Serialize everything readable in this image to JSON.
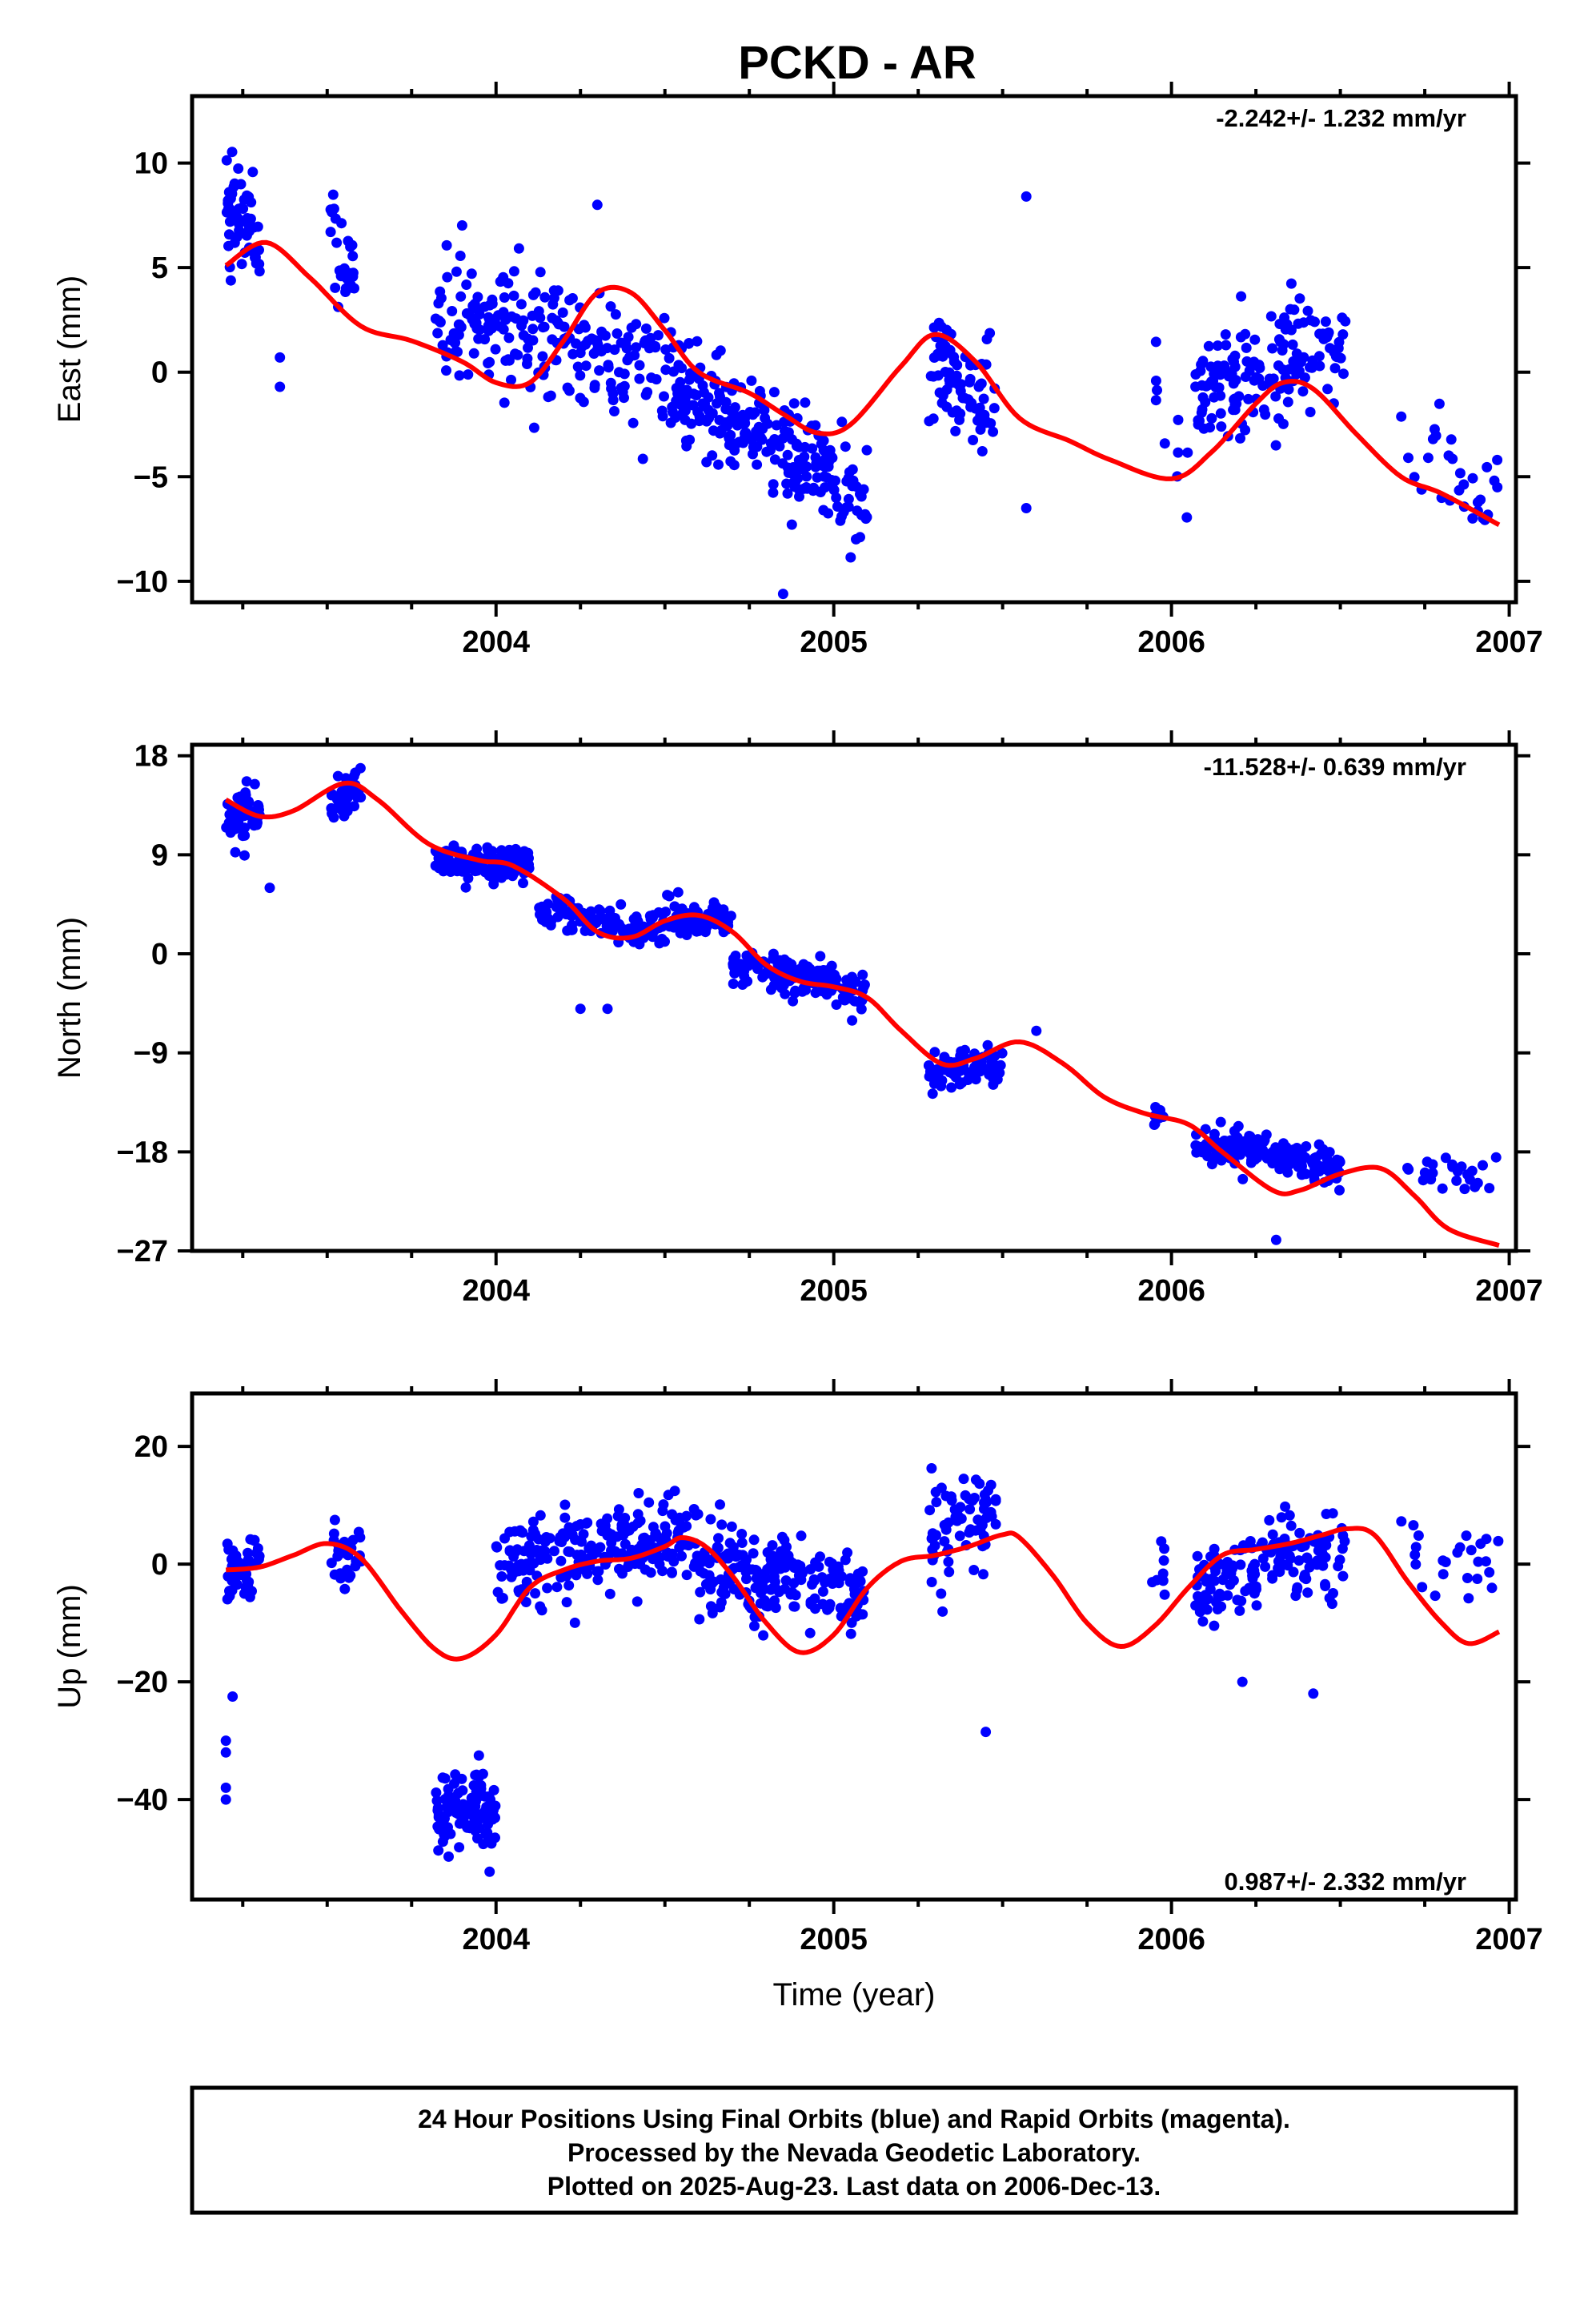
{
  "colors": {
    "points": "#0000ff",
    "model": "#ff0000",
    "frame": "#000000"
  },
  "chart_data": {
    "type": "scatter",
    "title": "PCKD - AR",
    "xlabel": "Time (year)",
    "xlim": [
      2003.1,
      2007.02
    ],
    "xticks": [
      2004,
      2005,
      2006,
      2007
    ],
    "grid": false,
    "panels": [
      {
        "id": "east",
        "ylabel": "East (mm)",
        "ylim": [
          -11,
          13.2
        ],
        "yticks": [
          -10,
          -5,
          0,
          5,
          10
        ],
        "rate_text": "-2.242+/- 1.232 mm/yr",
        "rate_position": "top-right",
        "model": [
          [
            2003.2,
            5.1
          ],
          [
            2003.32,
            6.2
          ],
          [
            2003.45,
            4.5
          ],
          [
            2003.6,
            2.2
          ],
          [
            2003.75,
            1.5
          ],
          [
            2003.9,
            0.5
          ],
          [
            2004.0,
            -0.5
          ],
          [
            2004.1,
            -0.5
          ],
          [
            2004.2,
            1.5
          ],
          [
            2004.3,
            3.8
          ],
          [
            2004.4,
            3.8
          ],
          [
            2004.5,
            2
          ],
          [
            2004.6,
            0
          ],
          [
            2004.75,
            -1
          ],
          [
            2004.85,
            -2
          ],
          [
            2004.95,
            -2.9
          ],
          [
            2005.05,
            -2.5
          ],
          [
            2005.2,
            0.3
          ],
          [
            2005.3,
            1.8
          ],
          [
            2005.42,
            0.5
          ],
          [
            2005.55,
            -2.2
          ],
          [
            2005.7,
            -3.3
          ],
          [
            2005.82,
            -4.2
          ],
          [
            2006.0,
            -5.1
          ],
          [
            2006.12,
            -3.8
          ],
          [
            2006.25,
            -1.5
          ],
          [
            2006.33,
            -0.5
          ],
          [
            2006.42,
            -0.8
          ],
          [
            2006.55,
            -3
          ],
          [
            2006.68,
            -5
          ],
          [
            2006.8,
            -5.8
          ],
          [
            2006.97,
            -7.3
          ]
        ],
        "clusters": [
          {
            "x": [
              2003.2,
              2003.3
            ],
            "center": [
              8,
              7
            ],
            "spread": 2.3,
            "n": 55
          },
          {
            "x": [
              2003.51,
              2003.58
            ],
            "center": [
              6.5,
              3.5
            ],
            "spread": 2.3,
            "n": 32
          },
          {
            "x": [
              2003.82,
              2004.55
            ],
            "center": [
              3,
              0
            ],
            "spread": 2.2,
            "n": 240
          },
          {
            "x": [
              2004.55,
              2005.1
            ],
            "center": [
              -1,
              -6
            ],
            "spread": 2.0,
            "n": 230
          },
          {
            "x": [
              2005.28,
              2005.48
            ],
            "center": [
              1,
              -2.5
            ],
            "spread": 2.5,
            "n": 80
          },
          {
            "x": [
              2005.94,
              2006.05
            ],
            "center": [
              0,
              -5
            ],
            "spread": 2.5,
            "n": 10
          },
          {
            "x": [
              2006.07,
              2006.52
            ],
            "center": [
              -1,
              1.5
            ],
            "spread": 2.2,
            "n": 160
          },
          {
            "x": [
              2006.68,
              2006.97
            ],
            "center": [
              -3,
              -6.5
            ],
            "spread": 1.8,
            "n": 30
          }
        ],
        "extra_points": [
          [
            2005.57,
            8.4
          ],
          [
            2004.85,
            -10.6
          ],
          [
            2003.36,
            -0.7
          ],
          [
            2003.36,
            0.7
          ],
          [
            2004.3,
            8
          ],
          [
            2005.57,
            -6.5
          ]
        ]
      },
      {
        "id": "north",
        "ylabel": "North (mm)",
        "ylim": [
          -27,
          19
        ],
        "yticks": [
          -27,
          -18,
          -9,
          0,
          9,
          18
        ],
        "rate_text": "-11.528+/- 0.639 mm/yr",
        "rate_position": "top-right",
        "model": [
          [
            2003.2,
            14
          ],
          [
            2003.3,
            12.5
          ],
          [
            2003.4,
            13
          ],
          [
            2003.55,
            15.5
          ],
          [
            2003.65,
            14
          ],
          [
            2003.8,
            10
          ],
          [
            2003.95,
            8.5
          ],
          [
            2004.05,
            8
          ],
          [
            2004.2,
            5
          ],
          [
            2004.3,
            2
          ],
          [
            2004.4,
            1.5
          ],
          [
            2004.5,
            3
          ],
          [
            2004.6,
            3.5
          ],
          [
            2004.7,
            2
          ],
          [
            2004.8,
            -1
          ],
          [
            2004.9,
            -2.5
          ],
          [
            2005.0,
            -3
          ],
          [
            2005.1,
            -4
          ],
          [
            2005.2,
            -7
          ],
          [
            2005.32,
            -10
          ],
          [
            2005.42,
            -9.5
          ],
          [
            2005.55,
            -8
          ],
          [
            2005.68,
            -10
          ],
          [
            2005.8,
            -13
          ],
          [
            2005.92,
            -14.5
          ],
          [
            2006.05,
            -15.5
          ],
          [
            2006.15,
            -18
          ],
          [
            2006.3,
            -21.5
          ],
          [
            2006.38,
            -21.5
          ],
          [
            2006.5,
            -20
          ],
          [
            2006.62,
            -19.5
          ],
          [
            2006.72,
            -22
          ],
          [
            2006.82,
            -25
          ],
          [
            2006.97,
            -26.5
          ]
        ],
        "clusters": [
          {
            "x": [
              2003.2,
              2003.3
            ],
            "center": [
              12,
              13
            ],
            "spread": 2.0,
            "n": 60
          },
          {
            "x": [
              2003.51,
              2003.6
            ],
            "center": [
              14,
              15
            ],
            "spread": 1.5,
            "n": 40
          },
          {
            "x": [
              2003.82,
              2004.1
            ],
            "center": [
              8.5,
              8
            ],
            "spread": 1.4,
            "n": 130
          },
          {
            "x": [
              2004.12,
              2004.45
            ],
            "center": [
              4,
              2
            ],
            "spread": 1.5,
            "n": 100
          },
          {
            "x": [
              2004.45,
              2004.7
            ],
            "center": [
              3,
              3.5
            ],
            "spread": 1.5,
            "n": 90
          },
          {
            "x": [
              2004.7,
              2005.1
            ],
            "center": [
              -1,
              -3.5
            ],
            "spread": 1.5,
            "n": 140
          },
          {
            "x": [
              2005.28,
              2005.5
            ],
            "center": [
              -11,
              -10
            ],
            "spread": 1.6,
            "n": 80
          },
          {
            "x": [
              2005.94,
              2005.98
            ],
            "center": [
              -15,
              -15
            ],
            "spread": 1.0,
            "n": 8
          },
          {
            "x": [
              2006.07,
              2006.5
            ],
            "center": [
              -17,
              -19.5
            ],
            "spread": 1.4,
            "n": 160
          },
          {
            "x": [
              2006.68,
              2006.97
            ],
            "center": [
              -19,
              -21
            ],
            "spread": 1.5,
            "n": 25
          }
        ],
        "extra_points": [
          [
            2004.25,
            -5
          ],
          [
            2004.33,
            -5
          ],
          [
            2005.6,
            -7
          ],
          [
            2006.31,
            -26
          ],
          [
            2003.33,
            6
          ]
        ]
      },
      {
        "id": "up",
        "ylabel": "Up (mm)",
        "ylim": [
          -57,
          29
        ],
        "yticks": [
          -40,
          -20,
          0,
          20
        ],
        "rate_text": "0.987+/- 2.332 mm/yr",
        "rate_position": "bottom-right",
        "model": [
          [
            2003.2,
            -1
          ],
          [
            2003.3,
            -0.5
          ],
          [
            2003.4,
            1.5
          ],
          [
            2003.5,
            3.5
          ],
          [
            2003.6,
            1
          ],
          [
            2003.72,
            -8
          ],
          [
            2003.82,
            -14.5
          ],
          [
            2003.9,
            -16
          ],
          [
            2004.0,
            -12
          ],
          [
            2004.1,
            -4
          ],
          [
            2004.2,
            -1
          ],
          [
            2004.3,
            0.5
          ],
          [
            2004.4,
            1
          ],
          [
            2004.5,
            3
          ],
          [
            2004.55,
            4.5
          ],
          [
            2004.62,
            3
          ],
          [
            2004.7,
            -2
          ],
          [
            2004.8,
            -10
          ],
          [
            2004.9,
            -15
          ],
          [
            2005.0,
            -12
          ],
          [
            2005.1,
            -4
          ],
          [
            2005.2,
            0.5
          ],
          [
            2005.3,
            1.5
          ],
          [
            2005.4,
            3
          ],
          [
            2005.5,
            5
          ],
          [
            2005.55,
            4.5
          ],
          [
            2005.65,
            -2
          ],
          [
            2005.75,
            -10
          ],
          [
            2005.85,
            -14
          ],
          [
            2005.95,
            -10.5
          ],
          [
            2006.05,
            -4
          ],
          [
            2006.15,
            1.5
          ],
          [
            2006.25,
            2.5
          ],
          [
            2006.35,
            3.5
          ],
          [
            2006.45,
            5
          ],
          [
            2006.52,
            6
          ],
          [
            2006.6,
            5
          ],
          [
            2006.7,
            -3
          ],
          [
            2006.8,
            -10
          ],
          [
            2006.88,
            -13.5
          ],
          [
            2006.97,
            -11.5
          ]
        ],
        "clusters": [
          {
            "x": [
              2003.2,
              2003.3
            ],
            "center": [
              0,
              0
            ],
            "spread": 5,
            "n": 50
          },
          {
            "x": [
              2003.51,
              2003.6
            ],
            "center": [
              2,
              0
            ],
            "spread": 4,
            "n": 30
          },
          {
            "x": [
              2003.82,
              2004.0
            ],
            "center": [
              -42,
              -42
            ],
            "spread": 6,
            "n": 110
          },
          {
            "x": [
              2004.0,
              2004.6
            ],
            "center": [
              0,
              5
            ],
            "spread": 6,
            "n": 230
          },
          {
            "x": [
              2004.6,
              2005.1
            ],
            "center": [
              0,
              -5
            ],
            "spread": 6,
            "n": 200
          },
          {
            "x": [
              2005.28,
              2005.48
            ],
            "center": [
              5,
              8
            ],
            "spread": 8,
            "n": 70
          },
          {
            "x": [
              2005.94,
              2005.98
            ],
            "center": [
              -2,
              -2
            ],
            "spread": 6,
            "n": 8
          },
          {
            "x": [
              2006.07,
              2006.52
            ],
            "center": [
              -3,
              3
            ],
            "spread": 6,
            "n": 150
          },
          {
            "x": [
              2006.68,
              2006.97
            ],
            "center": [
              0,
              0
            ],
            "spread": 6,
            "n": 25
          }
        ],
        "extra_points": [
          [
            2003.2,
            -40
          ],
          [
            2003.2,
            -38
          ],
          [
            2003.2,
            -32
          ],
          [
            2003.2,
            -30
          ],
          [
            2003.22,
            -22.5
          ],
          [
            2005.45,
            -28.5
          ],
          [
            2006.21,
            -20
          ],
          [
            2006.42,
            -22
          ]
        ]
      }
    ]
  },
  "caption": {
    "lines": [
      "24 Hour Positions Using Final Orbits (blue) and Rapid Orbits (magenta).",
      "Processed by the Nevada Geodetic Laboratory.",
      "Plotted on 2025-Aug-23. Last data on 2006-Dec-13."
    ]
  }
}
